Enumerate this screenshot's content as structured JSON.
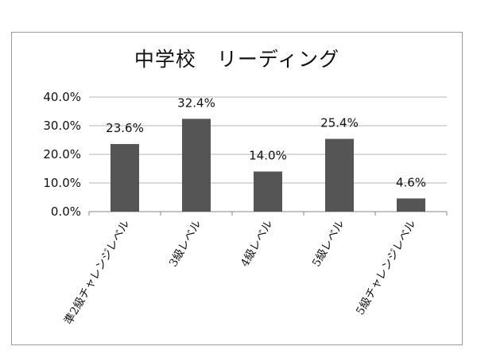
{
  "chart_data": {
    "type": "bar",
    "title": "中学校　リーディング",
    "categories": [
      "準2級チャレンジレベル",
      "3級レベル",
      "4級レベル",
      "5級レベル",
      "5級チャレンジレベル"
    ],
    "values": [
      23.6,
      32.4,
      14.0,
      25.4,
      4.6
    ],
    "data_labels": [
      "23.6%",
      "32.4%",
      "14.0%",
      "25.4%",
      "4.6%"
    ],
    "y_ticks": [
      "0.0%",
      "10.0%",
      "20.0%",
      "30.0%",
      "40.0%"
    ],
    "ylim": [
      0,
      40
    ],
    "grid": true,
    "legend": "none",
    "bar_color": "#555555",
    "grid_color": "#b5b5b5"
  }
}
